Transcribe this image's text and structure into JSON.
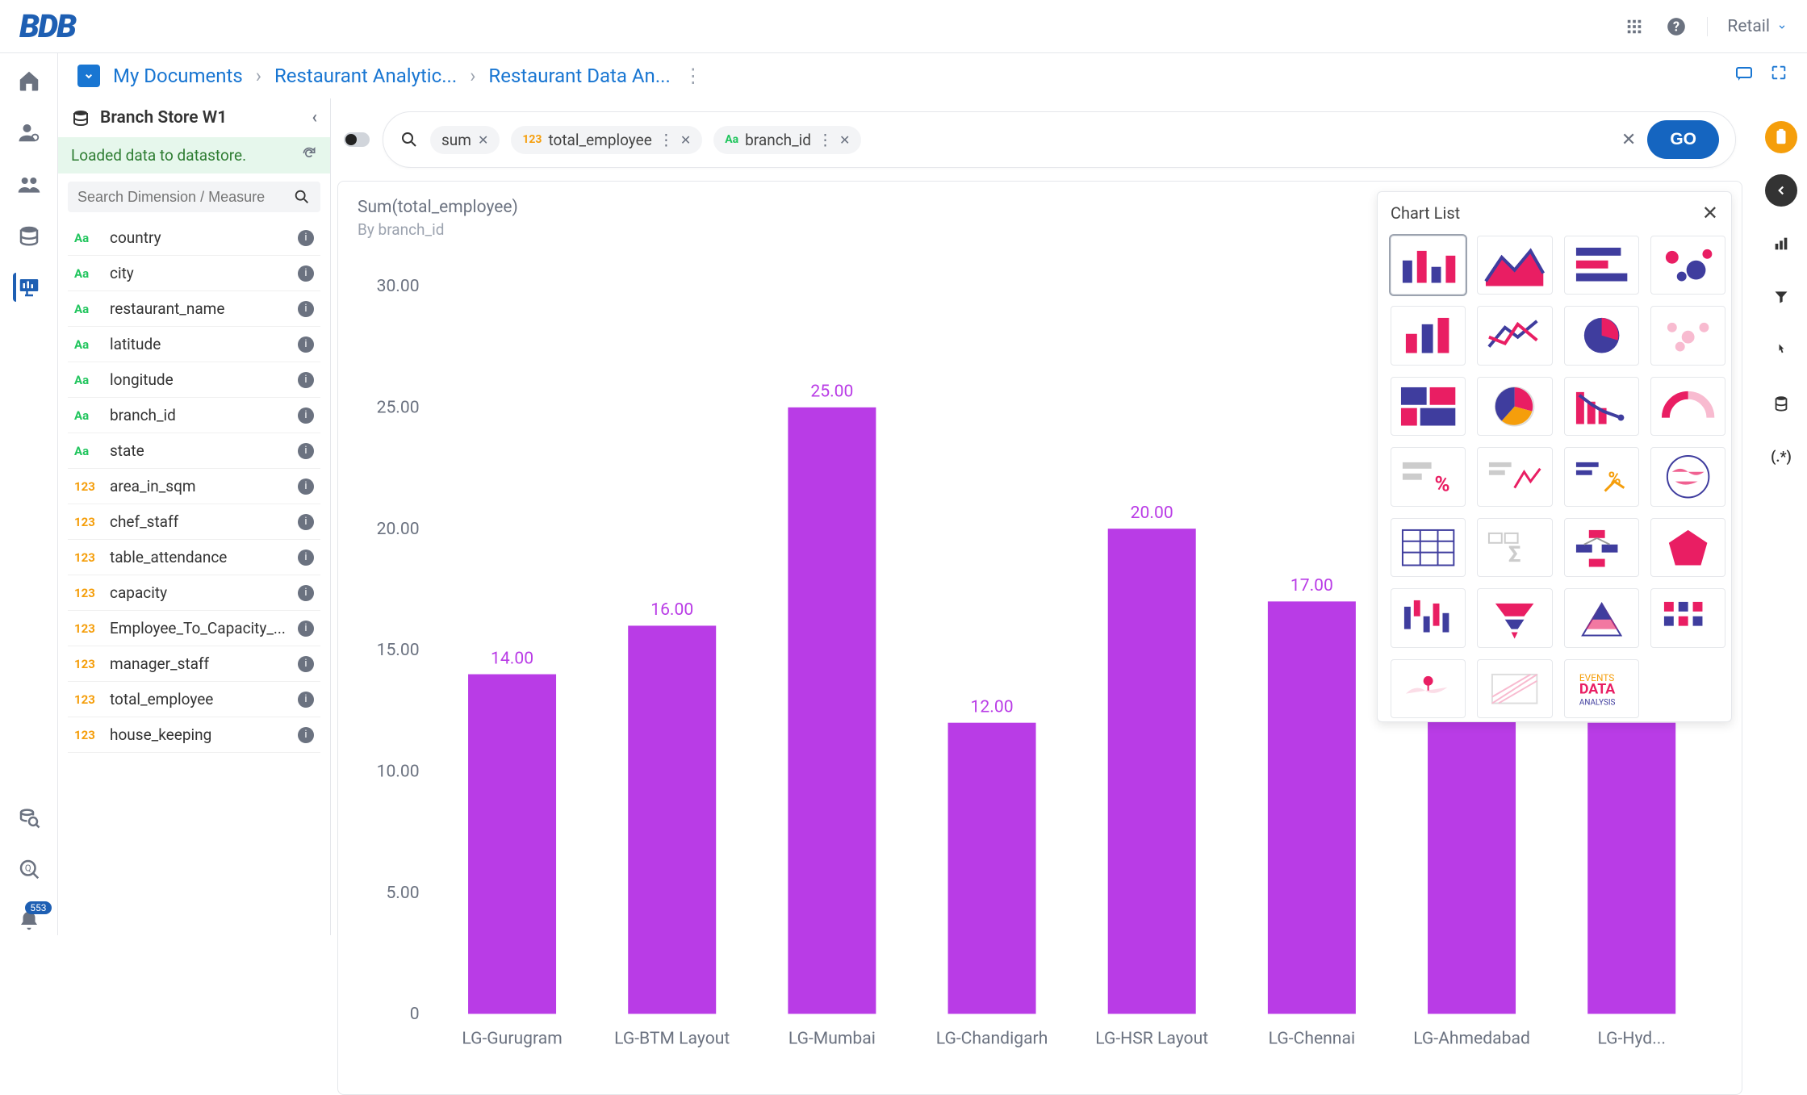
{
  "topbar": {
    "logo_text": "BDB",
    "workspace": "Retail"
  },
  "breadcrumb": {
    "root": "My Documents",
    "mid": "Restaurant Analytic...",
    "leaf": "Restaurant Data An..."
  },
  "rail": {
    "notification_count": "553"
  },
  "datasource": {
    "name": "Branch Store W1",
    "status": "Loaded data to datastore.",
    "search_placeholder": "Search Dimension / Measure"
  },
  "fields": [
    {
      "type": "dim",
      "type_label": "Aa",
      "name": "country"
    },
    {
      "type": "dim",
      "type_label": "Aa",
      "name": "city"
    },
    {
      "type": "dim",
      "type_label": "Aa",
      "name": "restaurant_name"
    },
    {
      "type": "dim",
      "type_label": "Aa",
      "name": "latitude"
    },
    {
      "type": "dim",
      "type_label": "Aa",
      "name": "longitude"
    },
    {
      "type": "dim",
      "type_label": "Aa",
      "name": "branch_id"
    },
    {
      "type": "dim",
      "type_label": "Aa",
      "name": "state"
    },
    {
      "type": "mea",
      "type_label": "123",
      "name": "area_in_sqm"
    },
    {
      "type": "mea",
      "type_label": "123",
      "name": "chef_staff"
    },
    {
      "type": "mea",
      "type_label": "123",
      "name": "table_attendance"
    },
    {
      "type": "mea",
      "type_label": "123",
      "name": "capacity"
    },
    {
      "type": "mea",
      "type_label": "123",
      "name": "Employee_To_Capacity_..."
    },
    {
      "type": "mea",
      "type_label": "123",
      "name": "manager_staff"
    },
    {
      "type": "mea",
      "type_label": "123",
      "name": "total_employee"
    },
    {
      "type": "mea",
      "type_label": "123",
      "name": "house_keeping"
    }
  ],
  "query": {
    "agg_pill": "sum",
    "measure_pill": "total_employee",
    "dimension_pill": "branch_id",
    "go_label": "GO"
  },
  "chart": {
    "type": "bar",
    "title": "Sum(total_employee)",
    "subtitle": "By branch_id",
    "categories": [
      "LG-Gurugram",
      "LG-BTM Layout",
      "LG-Mumbai",
      "LG-Chandigarh",
      "LG-HSR Layout",
      "LG-Chennai",
      "LG-Ahmedabad",
      "LG-Hyd..."
    ],
    "values": [
      14,
      16,
      25,
      12,
      20,
      17,
      13,
      12
    ],
    "value_labels": [
      "14.00",
      "16.00",
      "25.00",
      "12.00",
      "20.00",
      "17.00",
      "13.00",
      "12.00"
    ],
    "bar_color": "#b93ce6",
    "value_label_color": "#b93ce6",
    "ylim": [
      0,
      30
    ],
    "ytick_step": 5,
    "ytick_labels": [
      "0",
      "5.00",
      "10.00",
      "15.00",
      "20.00",
      "25.00",
      "30.00"
    ],
    "axis_label_color": "#6b7280",
    "axis_font_size": 16,
    "background_color": "#ffffff",
    "bar_width_ratio": 0.55,
    "last_bar_partial": true
  },
  "chart_list": {
    "title": "Chart List"
  },
  "colors": {
    "primary": "#1976d2",
    "accent": "#f59e0b",
    "bar": "#b93ce6",
    "pink": "#e91e63",
    "navy": "#3f3d9e"
  }
}
